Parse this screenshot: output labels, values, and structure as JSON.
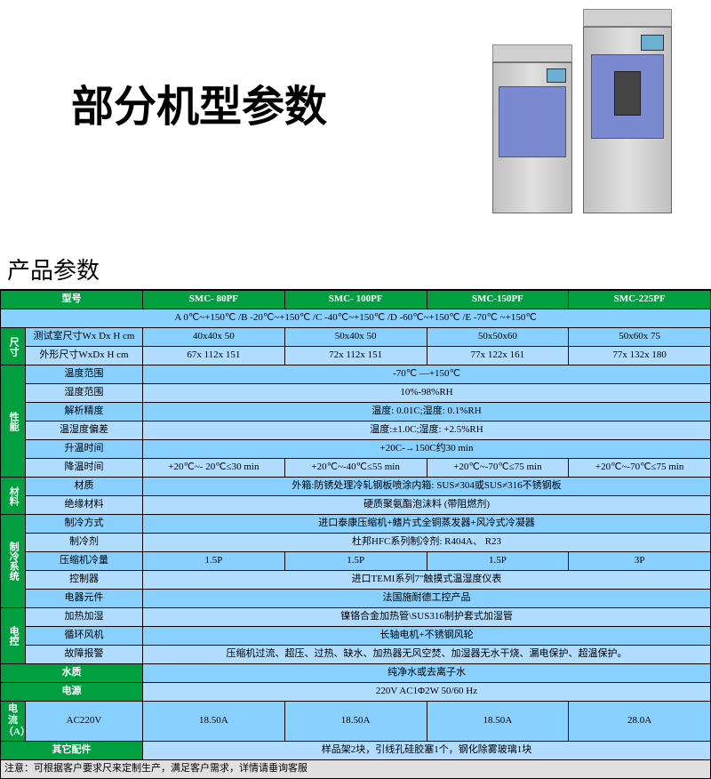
{
  "title": "部分机型参数",
  "section_title": "产品参数",
  "colors": {
    "header_bg": "#00a040",
    "header_fg": "#ffffff",
    "cell_bg_a": "#88d0ff",
    "cell_bg_b": "#b0dcff",
    "border": "#000000",
    "note_bg": "#e0e0e0"
  },
  "header": {
    "model_label": "型号",
    "models": [
      "SMC- 80PF",
      "SMC- 100PF",
      "SMC-150PF",
      "SMC-225PF"
    ]
  },
  "temp_range_row": "A 0℃~+150℃ /B -20℃~+150℃ /C -40℃~+150℃ /D -60℃~+150℃ /E -70℃ ~+150℃",
  "groups": [
    {
      "cat": "尺寸",
      "rows": [
        {
          "label": "测试室尺寸Wx Dx H cm",
          "vals": [
            "40x40x 50",
            "50x40x 50",
            "50x50x60",
            "50x60x 75"
          ],
          "alt": false
        },
        {
          "label": "外形尺寸WxDx H cm",
          "vals": [
            "67x 112x 151",
            "72x 112x 151",
            "77x 122x 161",
            "77x 132x 180"
          ],
          "alt": true
        }
      ]
    },
    {
      "cat": "性能",
      "rows": [
        {
          "label": "温度范围",
          "span": "-70℃ —+150℃",
          "alt": false
        },
        {
          "label": "湿度范围",
          "span": "10%-98%RH",
          "alt": true
        },
        {
          "label": "解析精度",
          "span": "温度: 0.01C;湿度: 0.1%RH",
          "alt": false
        },
        {
          "label": "温湿度偏差",
          "span": "温度:±1.0C;湿度: +2.5%RH",
          "alt": true
        },
        {
          "label": "升温时间",
          "span": "+20C-→150C约30 min",
          "alt": false
        },
        {
          "label": "降温时间",
          "vals": [
            "+20℃~- 20℃≤30 min",
            "+20℃~-40℃≤55 min",
            "+20℃~-70℃≤75 min",
            "+20℃~-70℃≤75 min"
          ],
          "alt": true
        }
      ]
    },
    {
      "cat": "材料",
      "rows": [
        {
          "label": "材质",
          "span": "外箱:防锈处理冷轧钢板喷涂内箱: SUS≠304或SUS≠316不锈钢板",
          "alt": false
        },
        {
          "label": "绝缘材料",
          "span": "硬质聚氨酯泡沫料 (带阻燃剂)",
          "alt": true
        }
      ]
    },
    {
      "cat": "制冷系统",
      "rows": [
        {
          "label": "制冷方式",
          "span": "进口泰康压缩机+鳍片式全铜蒸发器+风冷式冷凝器",
          "alt": false
        },
        {
          "label": "制冷剂",
          "span": "杜邦HFC系列制冷剂: R404A、 R23",
          "alt": true
        },
        {
          "label": "压缩机冷量",
          "vals": [
            "1.5P",
            "1.5P",
            "1.5P",
            "3P"
          ],
          "alt": false
        },
        {
          "label": "控制器",
          "span": "进口TEMI系列7\"触摸式温湿度仪表",
          "alt": true
        },
        {
          "label": "电器元件",
          "span": "法国施耐德工控产品",
          "alt": false
        }
      ]
    },
    {
      "cat": "电控",
      "rows": [
        {
          "label": "加热加湿",
          "span": "镍铬合金加热管\\SUS316制护套式加湿管",
          "alt": true
        },
        {
          "label": "循环风机",
          "span": "长轴电机+不锈钢风轮",
          "alt": false
        },
        {
          "label": "故障报警",
          "span": "压缩机过流、超压、过热、缺水、加热器无风空焚、加湿器无水干烧、漏电保护、超温保护。",
          "alt": true
        }
      ]
    }
  ],
  "bottom": [
    {
      "cat": "水质",
      "span": "纯净水或去离子水",
      "alt": false
    },
    {
      "cat": "电源",
      "span": "220V AC1Φ2W 50/60 Hz",
      "alt": true
    },
    {
      "cat": "电流（A）",
      "sub": "AC220V",
      "vals": [
        "18.50A",
        "18.50A",
        "18.50A",
        "28.0A"
      ],
      "alt": false
    },
    {
      "cat": "其它配件",
      "span": "样品架2块，引线孔硅胶塞1个，钢化除雾玻璃1块",
      "alt": true
    }
  ],
  "note": "注意：可根据客户要求尺来定制生产，满足客户需求，详情请垂询客服"
}
